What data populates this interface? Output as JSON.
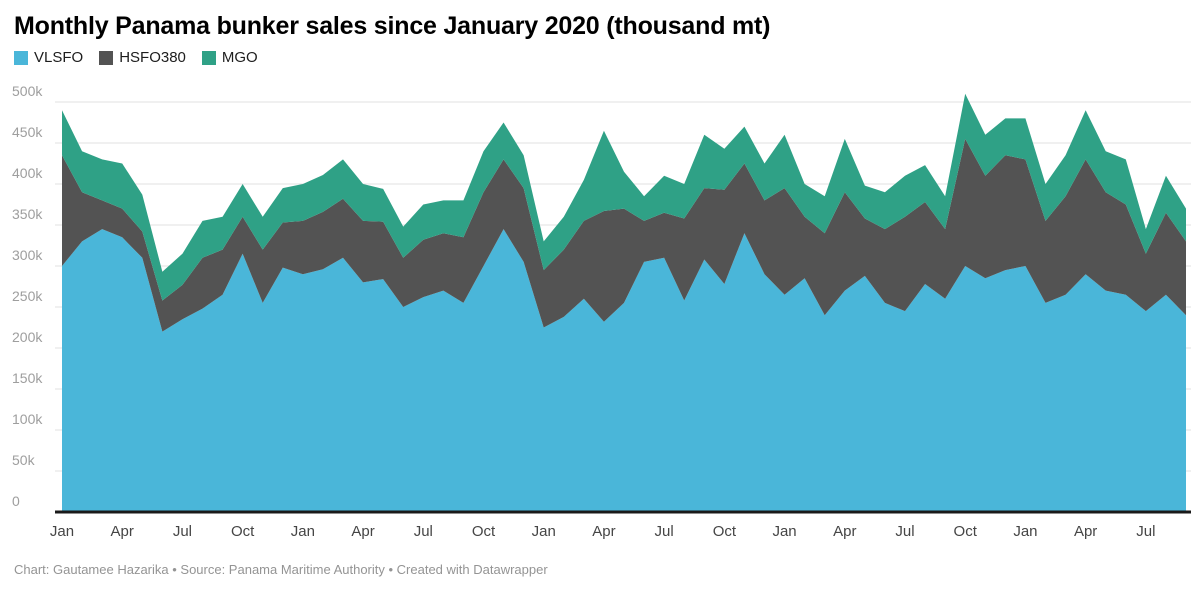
{
  "title": "Monthly Panama bunker sales since January 2020 (thousand mt)",
  "footer": {
    "text": "Chart: Gautamee Hazarika  • Source: Panama Maritime Authority • Created with Datawrapper"
  },
  "chart_data": {
    "type": "area",
    "stacked": true,
    "title": "Monthly Panama bunker sales since January 2020 (thousand mt)",
    "legend_position": "top-left",
    "grid": true,
    "ylim": [
      0,
      500
    ],
    "y_ticks": [
      {
        "value": 0,
        "label": "0"
      },
      {
        "value": 50,
        "label": "50k"
      },
      {
        "value": 100,
        "label": "100k"
      },
      {
        "value": 150,
        "label": "150k"
      },
      {
        "value": 200,
        "label": "200k"
      },
      {
        "value": 250,
        "label": "250k"
      },
      {
        "value": 300,
        "label": "300k"
      },
      {
        "value": 350,
        "label": "350k"
      },
      {
        "value": 400,
        "label": "400k"
      },
      {
        "value": 450,
        "label": "450k"
      },
      {
        "value": 500,
        "label": "500k"
      }
    ],
    "x_ticks": [
      {
        "i": 0,
        "label": "Jan"
      },
      {
        "i": 3,
        "label": "Apr"
      },
      {
        "i": 6,
        "label": "Jul"
      },
      {
        "i": 9,
        "label": "Oct"
      },
      {
        "i": 12,
        "label": "Jan"
      },
      {
        "i": 15,
        "label": "Apr"
      },
      {
        "i": 18,
        "label": "Jul"
      },
      {
        "i": 21,
        "label": "Oct"
      },
      {
        "i": 24,
        "label": "Jan"
      },
      {
        "i": 27,
        "label": "Apr"
      },
      {
        "i": 30,
        "label": "Jul"
      },
      {
        "i": 33,
        "label": "Oct"
      },
      {
        "i": 36,
        "label": "Jan"
      },
      {
        "i": 39,
        "label": "Apr"
      },
      {
        "i": 42,
        "label": "Jul"
      },
      {
        "i": 45,
        "label": "Oct"
      },
      {
        "i": 48,
        "label": "Jan"
      },
      {
        "i": 51,
        "label": "Apr"
      },
      {
        "i": 54,
        "label": "Jul"
      }
    ],
    "values_unit": "thousand mt (axis shown as k)",
    "series": [
      {
        "name": "VLSFO",
        "color": "#4ab6d9",
        "values": [
          300,
          330,
          345,
          335,
          310,
          220,
          235,
          248,
          265,
          315,
          255,
          298,
          290,
          296,
          310,
          280,
          284,
          250,
          262,
          270,
          255,
          300,
          345,
          305,
          225,
          238,
          260,
          232,
          255,
          305,
          310,
          258,
          308,
          278,
          340,
          290,
          265,
          285,
          240,
          270,
          288,
          255,
          245,
          278,
          260,
          300,
          285,
          295,
          300,
          255,
          265,
          290,
          270,
          265,
          245,
          265,
          240
        ]
      },
      {
        "name": "HSFO380",
        "color": "#535353",
        "values": [
          135,
          60,
          35,
          35,
          32,
          38,
          42,
          62,
          55,
          45,
          65,
          55,
          65,
          70,
          72,
          75,
          70,
          60,
          70,
          70,
          80,
          90,
          85,
          90,
          70,
          82,
          95,
          135,
          115,
          50,
          55,
          100,
          87,
          115,
          85,
          90,
          130,
          75,
          100,
          120,
          70,
          90,
          115,
          100,
          85,
          155,
          125,
          140,
          130,
          100,
          120,
          140,
          120,
          110,
          70,
          100,
          90
        ]
      },
      {
        "name": "MGO",
        "color": "#2fa186",
        "values": [
          55,
          50,
          50,
          55,
          45,
          35,
          38,
          45,
          40,
          40,
          40,
          42,
          45,
          45,
          48,
          45,
          40,
          38,
          43,
          40,
          45,
          50,
          45,
          40,
          35,
          40,
          50,
          98,
          45,
          30,
          45,
          42,
          65,
          50,
          45,
          45,
          65,
          40,
          45,
          65,
          40,
          45,
          50,
          45,
          40,
          55,
          50,
          45,
          50,
          45,
          50,
          60,
          50,
          55,
          30,
          45,
          40
        ]
      }
    ]
  }
}
